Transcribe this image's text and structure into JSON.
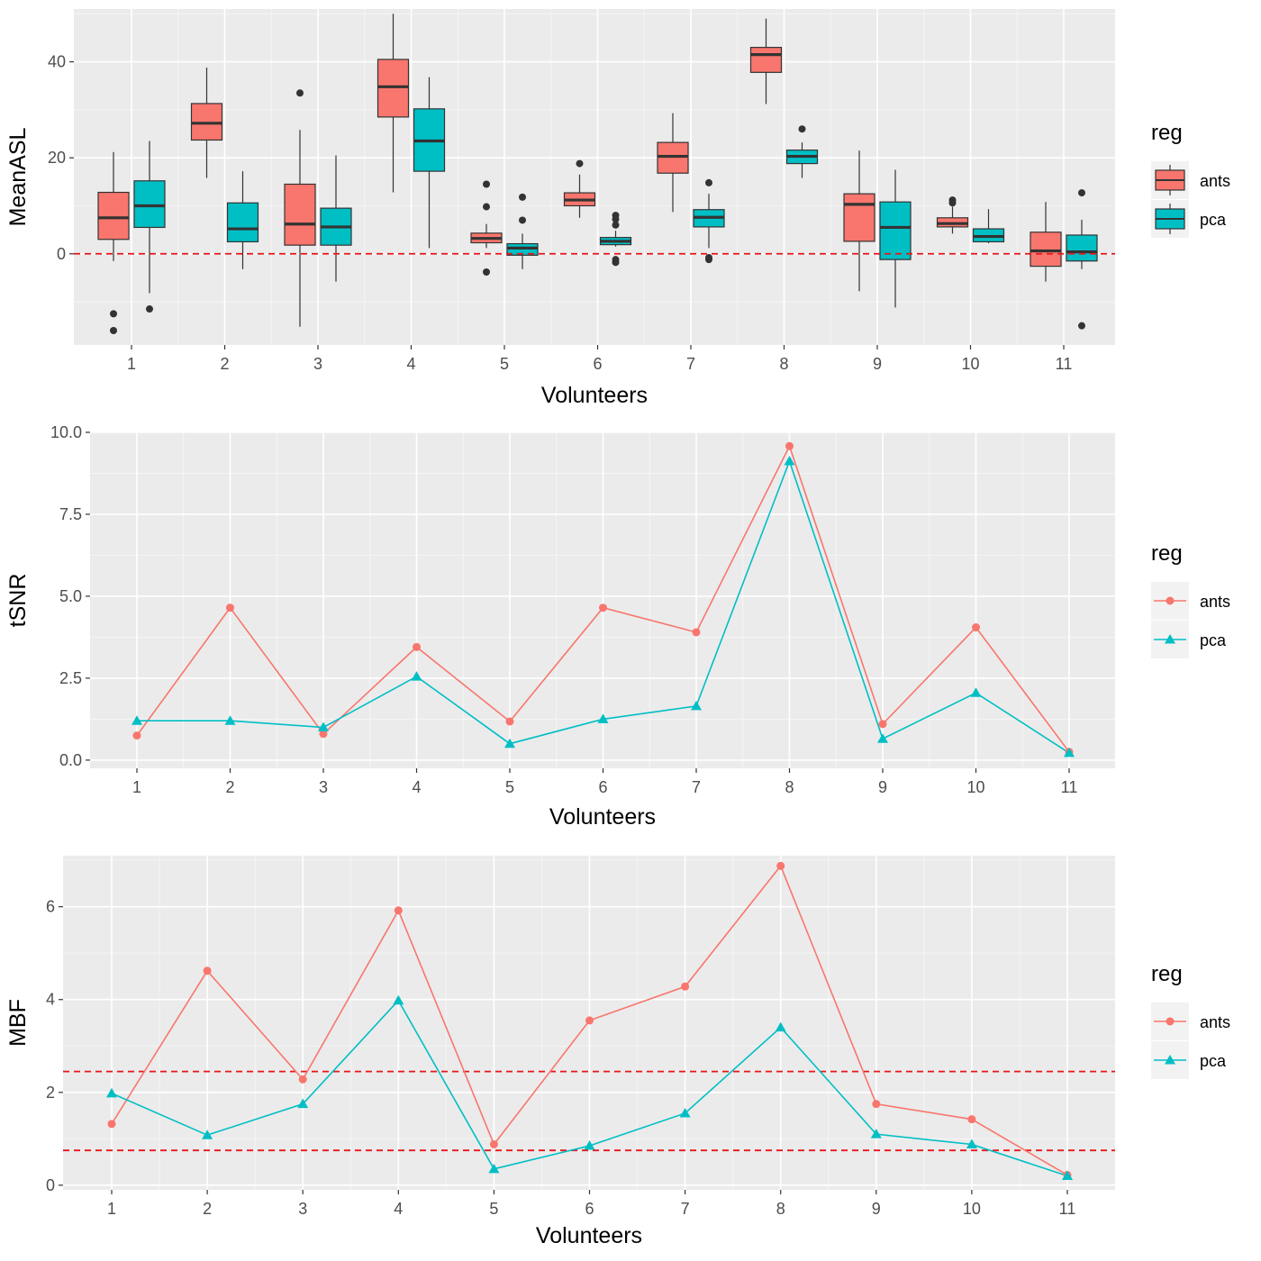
{
  "colors": {
    "panel_bg": "#ebebeb",
    "grid": "#ffffff",
    "ants": "#f8766d",
    "pca": "#00bfc4",
    "ref_line": "#e8151a",
    "box_outline": "#333333",
    "median": "#333333"
  },
  "chart_data": [
    {
      "type": "boxplot",
      "title": "",
      "xlabel": "Volunteers",
      "ylabel": "MeanASL",
      "categories": [
        "1",
        "2",
        "3",
        "4",
        "5",
        "6",
        "7",
        "8",
        "9",
        "10",
        "11"
      ],
      "y_ticks": [
        0,
        20,
        40
      ],
      "ylim": [
        -19,
        51
      ],
      "reference_lines": [
        0
      ],
      "legend": {
        "title": "reg",
        "labels": [
          "ants",
          "pca"
        ],
        "position": "right"
      },
      "series": [
        {
          "name": "ants",
          "boxes": [
            {
              "whisker_low": -1.5,
              "q1": 3,
              "median": 7.5,
              "q3": 12.8,
              "whisker_high": 21.2,
              "outliers": [
                -12.5,
                -16
              ]
            },
            {
              "whisker_low": 15.8,
              "q1": 23.7,
              "median": 27.2,
              "q3": 31.3,
              "whisker_high": 38.8,
              "outliers": []
            },
            {
              "whisker_low": -15.2,
              "q1": 1.8,
              "median": 6.2,
              "q3": 14.5,
              "whisker_high": 25.8,
              "outliers": [
                33.5
              ]
            },
            {
              "whisker_low": 12.8,
              "q1": 28.5,
              "median": 34.8,
              "q3": 40.5,
              "whisker_high": 50,
              "outliers": []
            },
            {
              "whisker_low": 1.2,
              "q1": 2.3,
              "median": 3.2,
              "q3": 4.3,
              "whisker_high": 6.2,
              "outliers": [
                14.5,
                9.8,
                -3.8
              ]
            },
            {
              "whisker_low": 7.5,
              "q1": 10,
              "median": 11.2,
              "q3": 12.7,
              "whisker_high": 16.5,
              "outliers": [
                18.8
              ]
            },
            {
              "whisker_low": 8.7,
              "q1": 16.8,
              "median": 20.3,
              "q3": 23.2,
              "whisker_high": 29.3,
              "outliers": []
            },
            {
              "whisker_low": 31.2,
              "q1": 37.8,
              "median": 41.5,
              "q3": 43,
              "whisker_high": 49,
              "outliers": []
            },
            {
              "whisker_low": -7.8,
              "q1": 2.6,
              "median": 10.3,
              "q3": 12.5,
              "whisker_high": 21.5,
              "outliers": []
            },
            {
              "whisker_low": 4.2,
              "q1": 5.6,
              "median": 6.3,
              "q3": 7.5,
              "whisker_high": 9.8,
              "outliers": [
                11.2,
                10.6
              ]
            },
            {
              "whisker_low": -5.8,
              "q1": -2.6,
              "median": 0.6,
              "q3": 4.5,
              "whisker_high": 10.8,
              "outliers": []
            }
          ]
        },
        {
          "name": "pca",
          "boxes": [
            {
              "whisker_low": -8.2,
              "q1": 5.5,
              "median": 10,
              "q3": 15.2,
              "whisker_high": 23.5,
              "outliers": [
                -11.5
              ]
            },
            {
              "whisker_low": -3.2,
              "q1": 2.5,
              "median": 5.2,
              "q3": 10.6,
              "whisker_high": 17.2,
              "outliers": []
            },
            {
              "whisker_low": -5.8,
              "q1": 1.8,
              "median": 5.6,
              "q3": 9.5,
              "whisker_high": 20.5,
              "outliers": []
            },
            {
              "whisker_low": 1.2,
              "q1": 17.2,
              "median": 23.5,
              "q3": 30.2,
              "whisker_high": 36.8,
              "outliers": []
            },
            {
              "whisker_low": -3.2,
              "q1": -0.3,
              "median": 1.2,
              "q3": 2.1,
              "whisker_high": 4.2,
              "outliers": [
                11.8,
                7
              ]
            },
            {
              "whisker_low": 1.5,
              "q1": 1.9,
              "median": 2.6,
              "q3": 3.4,
              "whisker_high": 4.8,
              "outliers": [
                8,
                7.2,
                6,
                -1.2,
                -1.8
              ]
            },
            {
              "whisker_low": 1.2,
              "q1": 5.6,
              "median": 7.6,
              "q3": 9.2,
              "whisker_high": 12.5,
              "outliers": [
                14.8,
                -0.8,
                -1.2
              ]
            },
            {
              "whisker_low": 15.8,
              "q1": 18.8,
              "median": 20.3,
              "q3": 21.6,
              "whisker_high": 23.2,
              "outliers": [
                26
              ]
            },
            {
              "whisker_low": -11.2,
              "q1": -1.2,
              "median": 5.5,
              "q3": 10.8,
              "whisker_high": 17.5,
              "outliers": []
            },
            {
              "whisker_low": 2.2,
              "q1": 2.5,
              "median": 3.6,
              "q3": 5.2,
              "whisker_high": 9.3,
              "outliers": []
            },
            {
              "whisker_low": -3.2,
              "q1": -1.5,
              "median": 0.4,
              "q3": 3.9,
              "whisker_high": 7.1,
              "outliers": [
                12.7,
                -15
              ]
            }
          ]
        }
      ]
    },
    {
      "type": "line",
      "title": "",
      "xlabel": "Volunteers",
      "ylabel": "tSNR",
      "x": [
        1,
        2,
        3,
        4,
        5,
        6,
        7,
        8,
        9,
        10,
        11
      ],
      "y_ticks": [
        0.0,
        2.5,
        5.0,
        7.5,
        10.0
      ],
      "y_tick_labels": [
        "0.0",
        "2.5",
        "5.0",
        "7.5",
        "10.0"
      ],
      "ylim": [
        -0.25,
        10.0
      ],
      "reference_lines": [],
      "legend": {
        "title": "reg",
        "labels": [
          "ants",
          "pca"
        ],
        "position": "right"
      },
      "series": [
        {
          "name": "ants",
          "marker": "circle",
          "values": [
            0.75,
            4.65,
            0.8,
            3.45,
            1.18,
            4.65,
            3.9,
            9.58,
            1.1,
            4.05,
            0.25
          ]
        },
        {
          "name": "pca",
          "marker": "triangle",
          "values": [
            1.2,
            1.2,
            1.0,
            2.55,
            0.5,
            1.25,
            1.65,
            9.12,
            0.65,
            2.05,
            0.22
          ]
        }
      ]
    },
    {
      "type": "line",
      "title": "",
      "xlabel": "Volunteers",
      "ylabel": "MBF",
      "x": [
        1,
        2,
        3,
        4,
        5,
        6,
        7,
        8,
        9,
        10,
        11
      ],
      "y_ticks": [
        0,
        2,
        4,
        6
      ],
      "y_tick_labels": [
        "0",
        "2",
        "4",
        "6"
      ],
      "ylim": [
        -0.1,
        7.1
      ],
      "reference_lines": [
        0.75,
        2.45
      ],
      "legend": {
        "title": "reg",
        "labels": [
          "ants",
          "pca"
        ],
        "position": "right"
      },
      "series": [
        {
          "name": "ants",
          "marker": "circle",
          "values": [
            1.32,
            4.62,
            2.28,
            5.92,
            0.88,
            3.55,
            4.28,
            6.88,
            1.75,
            1.42,
            0.22
          ]
        },
        {
          "name": "pca",
          "marker": "triangle",
          "values": [
            1.98,
            1.08,
            1.75,
            3.98,
            0.35,
            0.85,
            1.55,
            3.4,
            1.1,
            0.88,
            0.2
          ]
        }
      ]
    }
  ]
}
